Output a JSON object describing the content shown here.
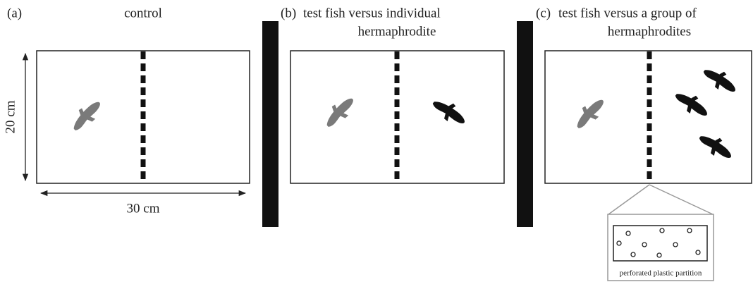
{
  "panels": [
    {
      "label": "(a)",
      "title_lines": [
        "control"
      ]
    },
    {
      "label": "(b)",
      "title_lines": [
        "test fish versus individual",
        "hermaphrodite"
      ]
    },
    {
      "label": "(c)",
      "title_lines": [
        "test fish versus a group of",
        "hermaphrodites"
      ]
    }
  ],
  "dimensions": {
    "height": "20 cm",
    "width": "30 cm"
  },
  "inset": {
    "caption": "perforated plastic partition"
  }
}
